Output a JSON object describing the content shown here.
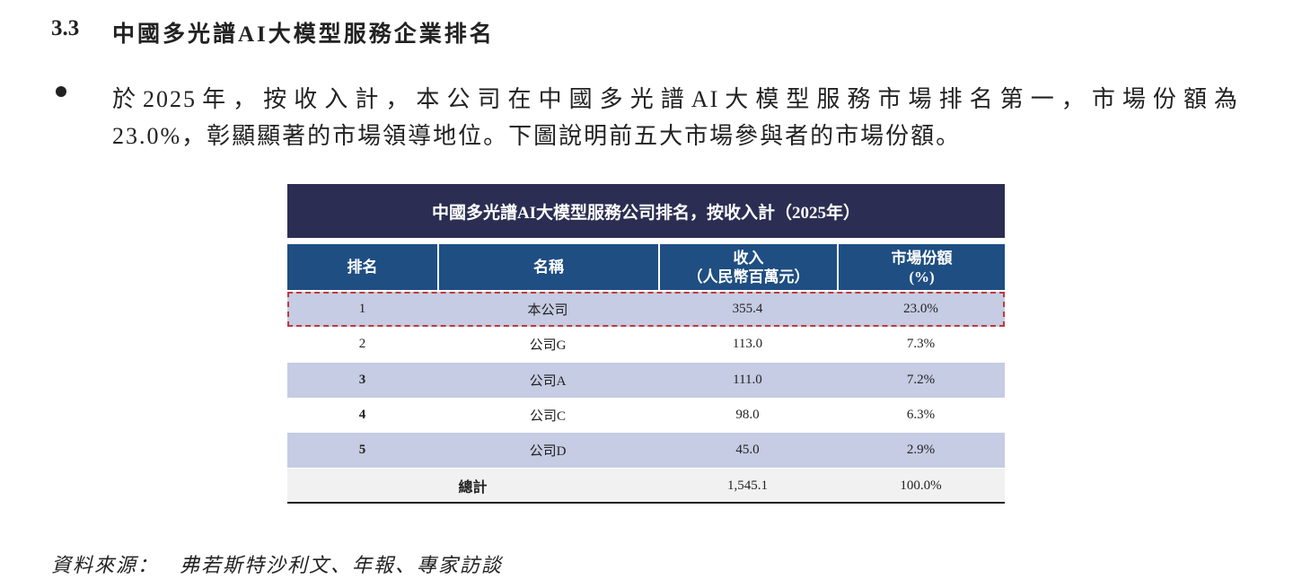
{
  "section": {
    "number": "3.3",
    "title": "中國多光譜AI大模型服務企業排名"
  },
  "paragraph": {
    "lines": [
      "於2025年，按收入計，本公司在中國多光譜AI大模型服務市場排名第一，市場份額為",
      "23.0%，彰顯顯著的市場領導地位。下圖說明前五大市場參與者的市場份額。"
    ]
  },
  "table": {
    "title": "中國多光譜AI大模型服務公司排名，按收入計（2025年）",
    "header": [
      [
        "排名"
      ],
      [
        "名稱"
      ],
      [
        "收入",
        "（人民幣百萬元）"
      ],
      [
        "市場份額",
        "(%)"
      ]
    ],
    "rows": [
      [
        "1",
        "本公司",
        "355.4",
        "23.0%"
      ],
      [
        "2",
        "公司G",
        "113.0",
        "7.3%"
      ],
      [
        "3",
        "公司A",
        "111.0",
        "7.2%"
      ],
      [
        "4",
        "公司C",
        "98.0",
        "6.3%"
      ],
      [
        "5",
        "公司D",
        "45.0",
        "2.9%"
      ]
    ],
    "total": [
      "總計",
      "1,545.1",
      "100.0%"
    ]
  },
  "source": {
    "label": "資料來源：",
    "text": "弗若斯特沙利文、年報、專家訪談"
  }
}
